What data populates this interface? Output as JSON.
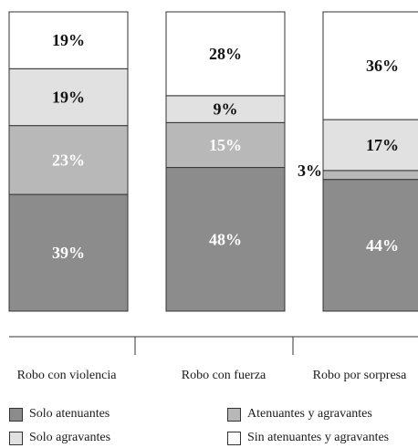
{
  "chart_data": {
    "type": "bar",
    "stacked": true,
    "normalized_percent": true,
    "categories": [
      "Robo con violencia",
      "Robo con fuerza",
      "Robo por sorpresa"
    ],
    "series": [
      {
        "name": "Solo atenuantes",
        "values": [
          39,
          48,
          44
        ],
        "color": "#8c8c8c"
      },
      {
        "name": "Atenuantes y agravantes",
        "values": [
          23,
          15,
          3
        ],
        "color": "#b8b8b8"
      },
      {
        "name": "Solo agravantes",
        "values": [
          19,
          9,
          17
        ],
        "color": "#e1e1e1"
      },
      {
        "name": "Sin atenuantes y agravantes",
        "values": [
          19,
          28,
          36
        ],
        "color": "#ffffff"
      }
    ],
    "data_labels": [
      [
        "39%",
        "23%",
        "19%",
        "19%"
      ],
      [
        "48%",
        "15%",
        "9%",
        "28%"
      ],
      [
        "44%",
        "3%",
        "17%",
        "36%"
      ]
    ],
    "title": "",
    "xlabel": "",
    "ylabel": "",
    "ylim": [
      0,
      100
    ],
    "grid": false,
    "legend_position": "bottom"
  },
  "legend": {
    "items": [
      {
        "label": "Solo atenuantes",
        "color": "#8c8c8c"
      },
      {
        "label": "Atenuantes y agravantes",
        "color": "#b8b8b8"
      },
      {
        "label": "Solo agravantes",
        "color": "#e1e1e1"
      },
      {
        "label": "Sin atenuantes y agravantes",
        "color": "#ffffff"
      }
    ]
  }
}
